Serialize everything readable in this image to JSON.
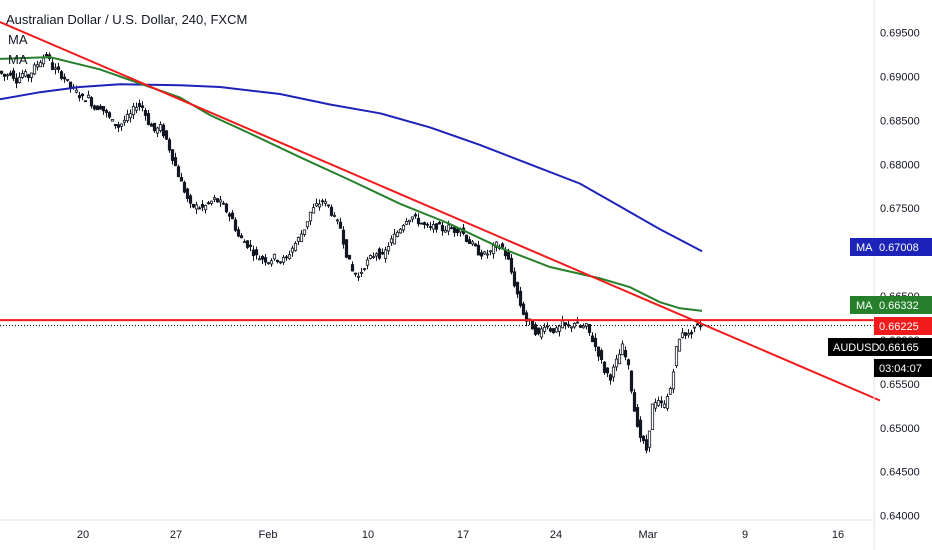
{
  "header": {
    "title": "Australian Dollar / U.S. Dollar, 240, FXCM",
    "ma_label_1": "MA",
    "ma_label_2": "MA"
  },
  "colors": {
    "up": "#131722",
    "down": "#131722",
    "ma_fast": "#26802b",
    "ma_slow": "#1d23b8",
    "trendline": "#f21b1b",
    "hline": "#f21b1b",
    "last_price": "#000000"
  },
  "badges": {
    "ma_slow": {
      "label": "MA",
      "value": "0.67008"
    },
    "ma_fast": {
      "label": "MA",
      "value": "0.66332"
    },
    "hline": {
      "value": "0.66225"
    },
    "last": {
      "label": "AUDUSD",
      "value": "0.66165"
    },
    "countdown": "03:04:07"
  },
  "chart_data": {
    "type": "candlestick",
    "symbol": "AUDUSD",
    "timeframe": "240",
    "ylim": [
      0.6395,
      0.6987
    ],
    "y_ticks": [
      "0.69500",
      "0.69000",
      "0.68500",
      "0.68000",
      "0.67500",
      "0.67000",
      "0.66500",
      "0.66000",
      "0.65500",
      "0.65000",
      "0.64500",
      "0.64000"
    ],
    "x_ticks": [
      "20",
      "27",
      "Feb",
      "10",
      "17",
      "24",
      "Mar",
      "9",
      "16"
    ],
    "close_path": [
      [
        0,
        0.6906
      ],
      [
        6,
        0.69
      ],
      [
        12,
        0.6905
      ],
      [
        18,
        0.6896
      ],
      [
        24,
        0.6903
      ],
      [
        30,
        0.69
      ],
      [
        36,
        0.691
      ],
      [
        42,
        0.6918
      ],
      [
        48,
        0.6925
      ],
      [
        54,
        0.691
      ],
      [
        60,
        0.6905
      ],
      [
        66,
        0.6898
      ],
      [
        72,
        0.6888
      ],
      [
        78,
        0.6882
      ],
      [
        84,
        0.6875
      ],
      [
        90,
        0.6876
      ],
      [
        96,
        0.6864
      ],
      [
        102,
        0.6866
      ],
      [
        108,
        0.6857
      ],
      [
        114,
        0.6848
      ],
      [
        120,
        0.6843
      ],
      [
        126,
        0.685
      ],
      [
        132,
        0.6856
      ],
      [
        138,
        0.6868
      ],
      [
        144,
        0.6865
      ],
      [
        150,
        0.6848
      ],
      [
        156,
        0.6838
      ],
      [
        162,
        0.6842
      ],
      [
        168,
        0.6828
      ],
      [
        174,
        0.6808
      ],
      [
        180,
        0.6788
      ],
      [
        186,
        0.677
      ],
      [
        192,
        0.6752
      ],
      [
        198,
        0.6752
      ],
      [
        204,
        0.675
      ],
      [
        210,
        0.6755
      ],
      [
        216,
        0.676
      ],
      [
        222,
        0.6756
      ],
      [
        228,
        0.6747
      ],
      [
        234,
        0.6737
      ],
      [
        240,
        0.6718
      ],
      [
        246,
        0.6712
      ],
      [
        252,
        0.6705
      ],
      [
        258,
        0.6695
      ],
      [
        264,
        0.6693
      ],
      [
        270,
        0.669
      ],
      [
        276,
        0.6694
      ],
      [
        282,
        0.669
      ],
      [
        288,
        0.6693
      ],
      [
        294,
        0.6705
      ],
      [
        300,
        0.6715
      ],
      [
        306,
        0.6727
      ],
      [
        312,
        0.6745
      ],
      [
        318,
        0.6753
      ],
      [
        324,
        0.6758
      ],
      [
        330,
        0.6752
      ],
      [
        336,
        0.6738
      ],
      [
        342,
        0.6728
      ],
      [
        348,
        0.6698
      ],
      [
        354,
        0.6678
      ],
      [
        360,
        0.6672
      ],
      [
        366,
        0.6685
      ],
      [
        372,
        0.6693
      ],
      [
        378,
        0.67
      ],
      [
        384,
        0.6694
      ],
      [
        390,
        0.6708
      ],
      [
        396,
        0.6718
      ],
      [
        402,
        0.6728
      ],
      [
        408,
        0.6738
      ],
      [
        414,
        0.674
      ],
      [
        420,
        0.6735
      ],
      [
        426,
        0.673
      ],
      [
        432,
        0.6727
      ],
      [
        438,
        0.673
      ],
      [
        444,
        0.6726
      ],
      [
        450,
        0.6728
      ],
      [
        456,
        0.6725
      ],
      [
        462,
        0.6727
      ],
      [
        468,
        0.6715
      ],
      [
        474,
        0.6708
      ],
      [
        480,
        0.67
      ],
      [
        486,
        0.6697
      ],
      [
        492,
        0.67
      ],
      [
        498,
        0.6708
      ],
      [
        504,
        0.6705
      ],
      [
        510,
        0.669
      ],
      [
        516,
        0.6664
      ],
      [
        522,
        0.664
      ],
      [
        528,
        0.6622
      ],
      [
        534,
        0.6615
      ],
      [
        540,
        0.6605
      ],
      [
        546,
        0.6618
      ],
      [
        552,
        0.6612
      ],
      [
        558,
        0.661
      ],
      [
        564,
        0.6618
      ],
      [
        570,
        0.6614
      ],
      [
        576,
        0.662
      ],
      [
        582,
        0.6614
      ],
      [
        588,
        0.6615
      ],
      [
        594,
        0.66
      ],
      [
        600,
        0.6585
      ],
      [
        606,
        0.6565
      ],
      [
        612,
        0.6558
      ],
      [
        618,
        0.6575
      ],
      [
        624,
        0.6592
      ],
      [
        630,
        0.6568
      ],
      [
        636,
        0.652
      ],
      [
        642,
        0.649
      ],
      [
        648,
        0.6475
      ],
      [
        654,
        0.6525
      ],
      [
        660,
        0.6528
      ],
      [
        666,
        0.6525
      ],
      [
        672,
        0.6545
      ],
      [
        678,
        0.659
      ],
      [
        684,
        0.661
      ],
      [
        690,
        0.6605
      ],
      [
        696,
        0.6615
      ],
      [
        702,
        0.6617
      ]
    ],
    "ma_fast": [
      [
        0,
        0.692
      ],
      [
        50,
        0.6922
      ],
      [
        100,
        0.6908
      ],
      [
        150,
        0.6888
      ],
      [
        180,
        0.6876
      ],
      [
        210,
        0.6856
      ],
      [
        250,
        0.6835
      ],
      [
        300,
        0.6808
      ],
      [
        350,
        0.6782
      ],
      [
        400,
        0.6755
      ],
      [
        450,
        0.6732
      ],
      [
        500,
        0.6705
      ],
      [
        550,
        0.6683
      ],
      [
        600,
        0.667
      ],
      [
        630,
        0.666
      ],
      [
        660,
        0.6643
      ],
      [
        680,
        0.6636
      ],
      [
        702,
        0.6633
      ]
    ],
    "ma_slow": [
      [
        0,
        0.6874
      ],
      [
        40,
        0.6882
      ],
      [
        80,
        0.6888
      ],
      [
        120,
        0.6891
      ],
      [
        180,
        0.689
      ],
      [
        220,
        0.6888
      ],
      [
        280,
        0.688
      ],
      [
        330,
        0.6868
      ],
      [
        380,
        0.6858
      ],
      [
        430,
        0.6842
      ],
      [
        480,
        0.6822
      ],
      [
        530,
        0.68
      ],
      [
        580,
        0.6778
      ],
      [
        620,
        0.6752
      ],
      [
        660,
        0.6726
      ],
      [
        702,
        0.6701
      ]
    ],
    "trendline": [
      [
        0,
        0.6962
      ],
      [
        880,
        0.6531
      ]
    ],
    "hline": 0.66225,
    "last_price": 0.66165
  }
}
